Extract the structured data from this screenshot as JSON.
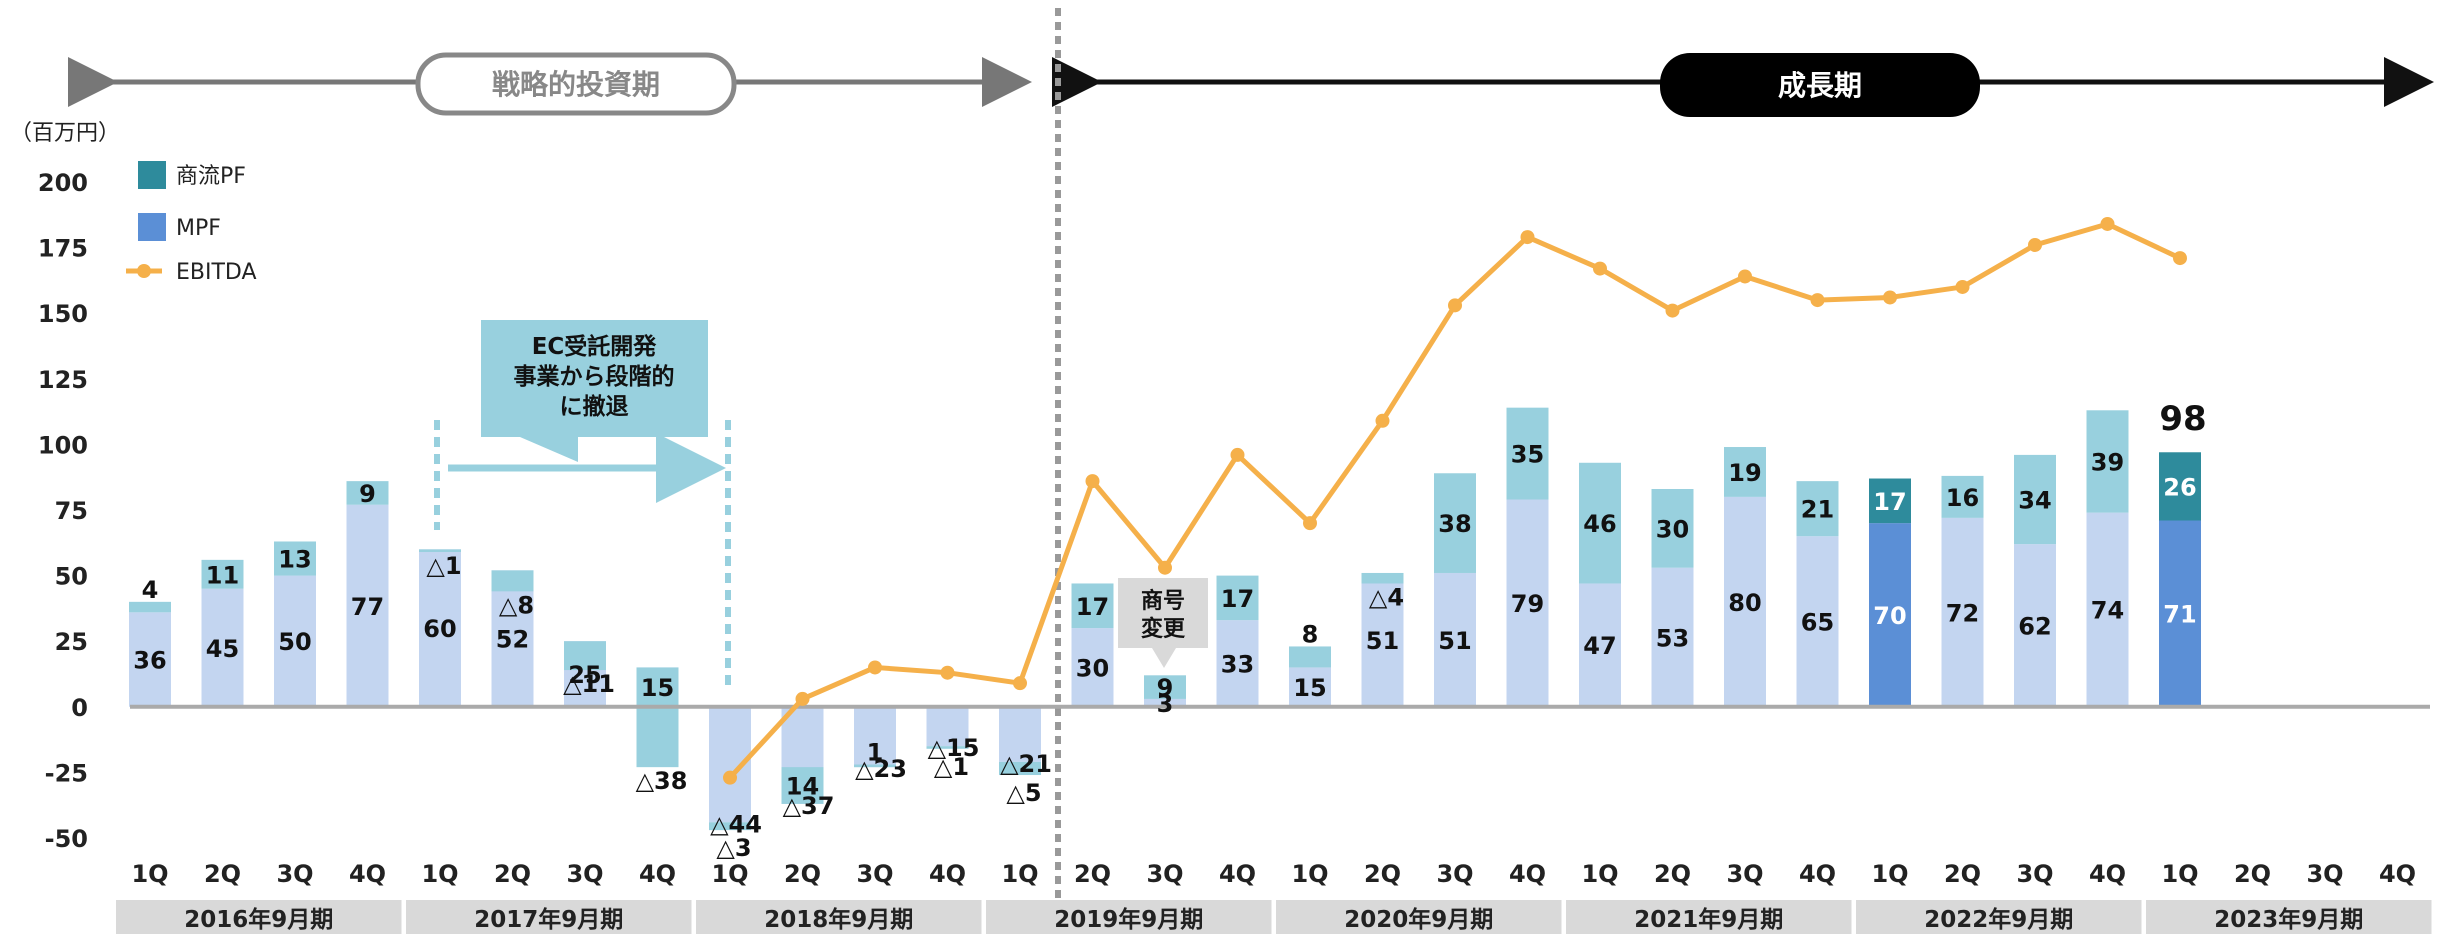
{
  "chart_data": {
    "type": "bar",
    "unit_label": "（百万円）",
    "ylim": [
      -50,
      200
    ],
    "y_ticks": [
      200,
      175,
      150,
      125,
      100,
      75,
      50,
      25,
      0,
      -25,
      -50
    ],
    "legend": [
      {
        "name": "商流PF",
        "kind": "box",
        "color": "#2e8b9c"
      },
      {
        "name": "MPF",
        "kind": "box",
        "color": "#5b8fd6"
      },
      {
        "name": "EBITDA",
        "kind": "line",
        "color": "#f5b04a"
      }
    ],
    "period_labels": [
      {
        "label": "戦略的投資期",
        "style": "outline"
      },
      {
        "label": "成長期",
        "style": "filled"
      }
    ],
    "callouts": {
      "withdrawal": [
        "EC受託開発",
        "事業から段階的",
        "に撤退"
      ],
      "rename": [
        "商号",
        "変更"
      ]
    },
    "top_label": "98",
    "fiscal_years": [
      "2016年9月期",
      "2017年9月期",
      "2018年9月期",
      "2019年9月期",
      "2020年9月期",
      "2021年9月期",
      "2022年9月期",
      "2023年9月期"
    ],
    "categories": [
      "1Q",
      "2Q",
      "3Q",
      "4Q",
      "1Q",
      "2Q",
      "3Q",
      "4Q",
      "1Q",
      "2Q",
      "3Q",
      "4Q",
      "1Q",
      "2Q",
      "3Q",
      "4Q",
      "1Q",
      "2Q",
      "3Q",
      "4Q",
      "1Q",
      "2Q",
      "3Q",
      "4Q",
      "1Q",
      "2Q",
      "3Q",
      "4Q",
      "1Q",
      "2Q",
      "3Q",
      "4Q"
    ],
    "bars": [
      {
        "b": 36,
        "t": 4,
        "bl": "36",
        "tl": "4"
      },
      {
        "b": 45,
        "t": 11,
        "bl": "45",
        "tl": "11"
      },
      {
        "b": 50,
        "t": 13,
        "bl": "50",
        "tl": "13"
      },
      {
        "b": 77,
        "t": 9,
        "bl": "77",
        "tl": "9"
      },
      {
        "b": 60,
        "t": -1,
        "bl": "60",
        "tl": "△1"
      },
      {
        "b": 52,
        "t": -8,
        "bl": "52",
        "tl": "△8"
      },
      {
        "b": 25,
        "t": -11,
        "bl": "25",
        "tl": "△11"
      },
      {
        "b": 15,
        "t": -38,
        "bl": "15",
        "tl": "△38"
      },
      {
        "b": -44,
        "t": -3,
        "bl": "△44",
        "tl": "△3"
      },
      {
        "b": -37,
        "t": 14,
        "bl": "△37",
        "tl": "14"
      },
      {
        "b": -23,
        "t": 1,
        "bl": "△23",
        "tl": "1"
      },
      {
        "b": -15,
        "t": -1,
        "bl": "△15",
        "tl": "△1"
      },
      {
        "b": -21,
        "t": -5,
        "bl": "△21",
        "tl": "△5"
      },
      {
        "b": 30,
        "t": 17,
        "bl": "30",
        "tl": "17"
      },
      {
        "b": 3,
        "t": 9,
        "bl": "3",
        "tl": "9"
      },
      {
        "b": 33,
        "t": 17,
        "bl": "33",
        "tl": "17"
      },
      {
        "b": 15,
        "t": 8,
        "bl": "15",
        "tl": "8"
      },
      {
        "b": 51,
        "t": -4,
        "bl": "51",
        "tl": "△4"
      },
      {
        "b": 51,
        "t": 38,
        "bl": "51",
        "tl": "38"
      },
      {
        "b": 79,
        "t": 35,
        "bl": "79",
        "tl": "35"
      },
      {
        "b": 47,
        "t": 46,
        "bl": "47",
        "tl": "46"
      },
      {
        "b": 53,
        "t": 30,
        "bl": "53",
        "tl": "30"
      },
      {
        "b": 80,
        "t": 19,
        "bl": "80",
        "tl": "19"
      },
      {
        "b": 65,
        "t": 21,
        "bl": "65",
        "tl": "21"
      },
      {
        "b": 70,
        "t": 17,
        "bl": "70",
        "tl": "17",
        "highlight": true
      },
      {
        "b": 72,
        "t": 16,
        "bl": "72",
        "tl": "16"
      },
      {
        "b": 62,
        "t": 34,
        "bl": "62",
        "tl": "34"
      },
      {
        "b": 74,
        "t": 39,
        "bl": "74",
        "tl": "39"
      },
      {
        "b": 71,
        "t": 26,
        "bl": "71",
        "tl": "26",
        "highlight": true
      },
      null,
      null,
      null
    ],
    "ebitda": [
      null,
      null,
      null,
      null,
      null,
      null,
      null,
      null,
      -27,
      3,
      15,
      13,
      9,
      86,
      53,
      96,
      70,
      109,
      153,
      179,
      167,
      151,
      164,
      155,
      156,
      160,
      176,
      184,
      171,
      null,
      null,
      null
    ],
    "colors": {
      "base": "#c3d5f0",
      "top": "#98d0de",
      "mpf": "#5b8fd6",
      "pf": "#2e8b9c",
      "ebitda": "#f5b04a",
      "axis_text": "#222222",
      "year_box": "#d9d9d9"
    }
  }
}
